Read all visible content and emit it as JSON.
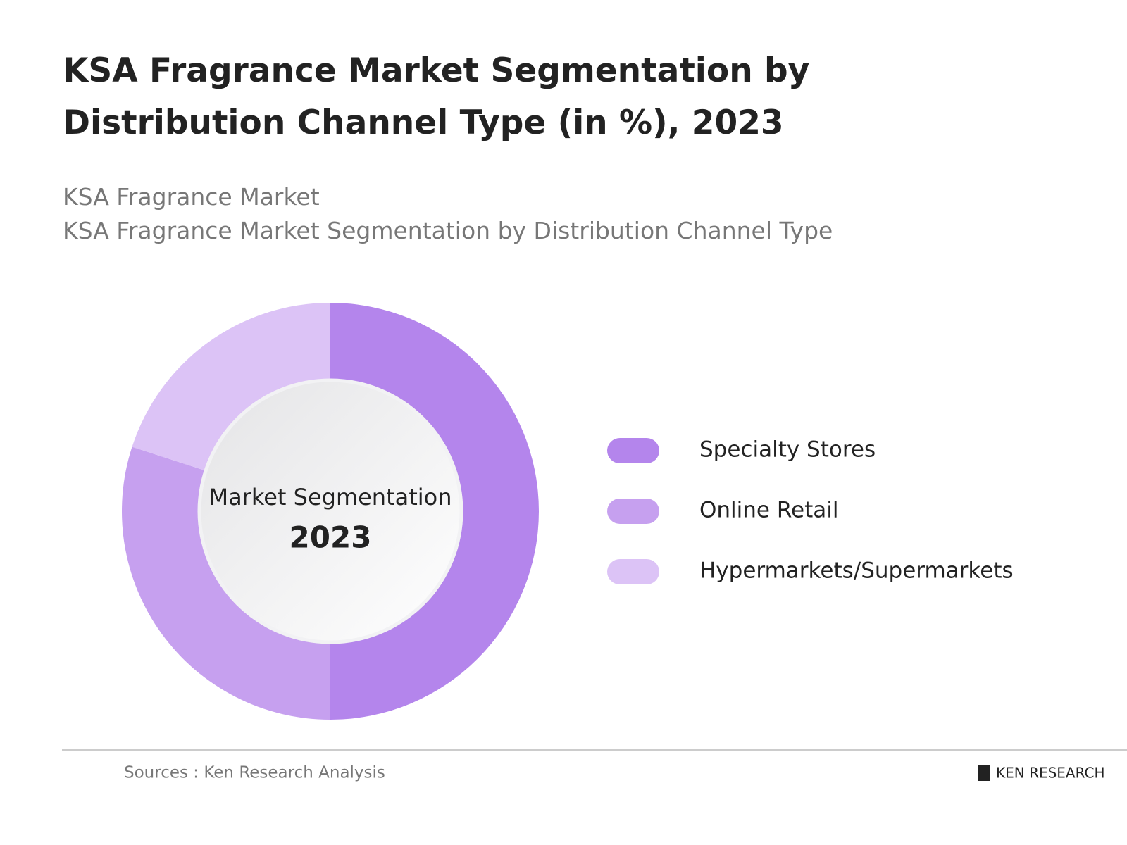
{
  "chart_data": {
    "type": "donut",
    "title": "KSA Fragrance Market Segmentation by Distribution Channel Type (in %), 2023",
    "subtitle": [
      "KSA Fragrance Market",
      "KSA Fragrance Market Segmentation by Distribution Channel Type"
    ],
    "center_label": "Market Segmentation",
    "center_year": "2023",
    "categories": [
      "Specialty Stores",
      "Online Retail",
      "Hypermarkets/Supermarkets"
    ],
    "values": [
      50,
      30,
      20
    ],
    "colors": [
      "#b485ec",
      "#c6a0ef",
      "#dcc3f6"
    ],
    "source": "Sources : Ken Research Analysis",
    "logo": "KEN RESEARCH"
  }
}
